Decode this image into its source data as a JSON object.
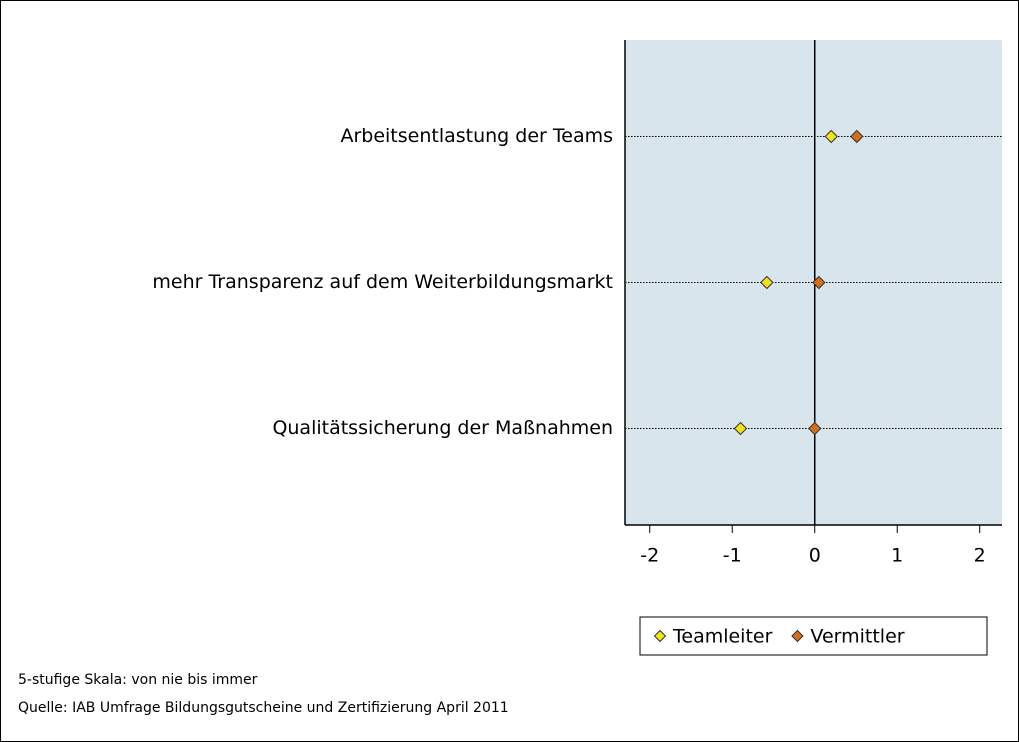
{
  "chart_data": {
    "type": "dot",
    "categories": [
      "Arbeitsentlastung der Teams",
      "mehr Transparenz auf dem Weiterbildungsmarkt",
      "Qualitätssicherung der Maßnahmen"
    ],
    "series": [
      {
        "name": "Teamleiter",
        "color": "#f2e21e",
        "values": [
          0.2,
          -0.58,
          -0.9
        ]
      },
      {
        "name": "Vermittler",
        "color": "#d2701e",
        "values": [
          0.51,
          0.05,
          0.0
        ]
      }
    ],
    "xlim": [
      -2.3,
      2.27
    ],
    "xticks": [
      -2,
      -1,
      0,
      1,
      2
    ],
    "reference_line": 0,
    "notes": [
      "5-stufige Skala: von nie bis immer",
      "Quelle: IAB Umfrage Bildungsgutscheine und Zertifizierung April 2011"
    ]
  }
}
